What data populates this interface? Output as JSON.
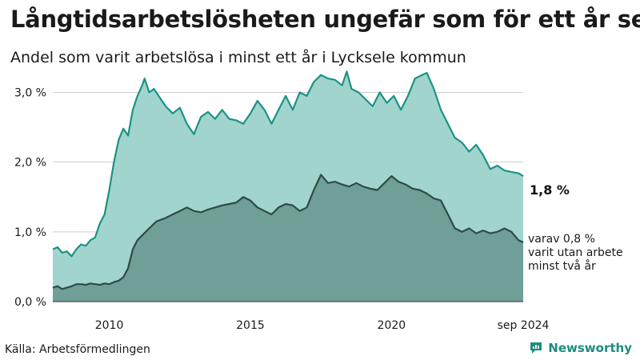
{
  "title": "Långtidsarbetslösheten ungefär som för ett år sen",
  "subtitle": "Andel som varit arbetslösa i minst ett år i Lycksele kommun",
  "source": "Källa: Arbetsförmedlingen",
  "brand": {
    "name": "Newsworthy",
    "icon": "newsworthy-logo-icon"
  },
  "end_label_total": "1,8 %",
  "end_label_note": [
    "varav 0,8 %",
    "varit utan arbete",
    "minst två år"
  ],
  "colors": {
    "total_fill": "#a2d4ce",
    "total_line": "#1a9384",
    "long_fill": "#6f9f97",
    "long_line": "#2e4b44",
    "axis": "#333333",
    "grid": "#cccccc"
  },
  "chart_data": {
    "type": "area",
    "title": "",
    "xlabel": "",
    "ylabel": "",
    "x_start": "2008-01",
    "x_end": "2024-09",
    "x_tick_labels": [
      "2010",
      "2015",
      "2020",
      "sep 2024"
    ],
    "y_tick_labels": [
      "0,0 %",
      "1,0 %",
      "2,0 %",
      "3,0 %"
    ],
    "y_ticks": [
      0,
      1,
      2,
      3
    ],
    "ylim": [
      0,
      3.35
    ],
    "grid": true,
    "series": [
      {
        "name": "",
        "points": [
          [
            "2008-01",
            0.75
          ],
          [
            "2008-03",
            0.78
          ],
          [
            "2008-05",
            0.7
          ],
          [
            "2008-07",
            0.72
          ],
          [
            "2008-09",
            0.65
          ],
          [
            "2008-11",
            0.75
          ],
          [
            "2009-01",
            0.82
          ],
          [
            "2009-03",
            0.8
          ],
          [
            "2009-05",
            0.88
          ],
          [
            "2009-07",
            0.92
          ],
          [
            "2009-09",
            1.12
          ],
          [
            "2009-11",
            1.25
          ],
          [
            "2010-01",
            1.6
          ],
          [
            "2010-03",
            2.0
          ],
          [
            "2010-05",
            2.32
          ],
          [
            "2010-07",
            2.48
          ],
          [
            "2010-09",
            2.38
          ],
          [
            "2010-11",
            2.75
          ],
          [
            "2011-01",
            2.95
          ],
          [
            "2011-03",
            3.1
          ],
          [
            "2011-04",
            3.2
          ],
          [
            "2011-06",
            3.0
          ],
          [
            "2011-08",
            3.05
          ],
          [
            "2011-10",
            2.95
          ],
          [
            "2012-01",
            2.8
          ],
          [
            "2012-04",
            2.7
          ],
          [
            "2012-07",
            2.78
          ],
          [
            "2012-10",
            2.55
          ],
          [
            "2013-01",
            2.4
          ],
          [
            "2013-04",
            2.65
          ],
          [
            "2013-07",
            2.72
          ],
          [
            "2013-10",
            2.62
          ],
          [
            "2014-01",
            2.75
          ],
          [
            "2014-04",
            2.62
          ],
          [
            "2014-07",
            2.6
          ],
          [
            "2014-10",
            2.55
          ],
          [
            "2015-01",
            2.7
          ],
          [
            "2015-04",
            2.88
          ],
          [
            "2015-07",
            2.75
          ],
          [
            "2015-10",
            2.55
          ],
          [
            "2016-01",
            2.75
          ],
          [
            "2016-04",
            2.95
          ],
          [
            "2016-07",
            2.75
          ],
          [
            "2016-10",
            3.0
          ],
          [
            "2017-01",
            2.95
          ],
          [
            "2017-04",
            3.15
          ],
          [
            "2017-07",
            3.25
          ],
          [
            "2017-10",
            3.2
          ],
          [
            "2018-01",
            3.18
          ],
          [
            "2018-04",
            3.1
          ],
          [
            "2018-06",
            3.3
          ],
          [
            "2018-08",
            3.05
          ],
          [
            "2018-11",
            3.0
          ],
          [
            "2019-02",
            2.9
          ],
          [
            "2019-05",
            2.8
          ],
          [
            "2019-08",
            3.0
          ],
          [
            "2019-11",
            2.85
          ],
          [
            "2020-02",
            2.95
          ],
          [
            "2020-05",
            2.75
          ],
          [
            "2020-08",
            2.95
          ],
          [
            "2020-11",
            3.2
          ],
          [
            "2021-02",
            3.25
          ],
          [
            "2021-04",
            3.28
          ],
          [
            "2021-07",
            3.05
          ],
          [
            "2021-10",
            2.75
          ],
          [
            "2022-01",
            2.55
          ],
          [
            "2022-04",
            2.35
          ],
          [
            "2022-07",
            2.28
          ],
          [
            "2022-10",
            2.15
          ],
          [
            "2023-01",
            2.25
          ],
          [
            "2023-04",
            2.1
          ],
          [
            "2023-07",
            1.9
          ],
          [
            "2023-10",
            1.95
          ],
          [
            "2024-01",
            1.88
          ],
          [
            "2024-04",
            1.86
          ],
          [
            "2024-07",
            1.84
          ],
          [
            "2024-09",
            1.8
          ]
        ]
      },
      {
        "name": "",
        "points": [
          [
            "2008-01",
            0.2
          ],
          [
            "2008-03",
            0.22
          ],
          [
            "2008-05",
            0.18
          ],
          [
            "2008-07",
            0.2
          ],
          [
            "2008-09",
            0.22
          ],
          [
            "2008-11",
            0.25
          ],
          [
            "2009-01",
            0.25
          ],
          [
            "2009-03",
            0.24
          ],
          [
            "2009-05",
            0.26
          ],
          [
            "2009-07",
            0.25
          ],
          [
            "2009-09",
            0.24
          ],
          [
            "2009-11",
            0.26
          ],
          [
            "2010-01",
            0.25
          ],
          [
            "2010-03",
            0.28
          ],
          [
            "2010-05",
            0.3
          ],
          [
            "2010-07",
            0.35
          ],
          [
            "2010-09",
            0.48
          ],
          [
            "2010-11",
            0.75
          ],
          [
            "2011-01",
            0.88
          ],
          [
            "2011-03",
            0.95
          ],
          [
            "2011-06",
            1.05
          ],
          [
            "2011-09",
            1.15
          ],
          [
            "2012-01",
            1.2
          ],
          [
            "2012-04",
            1.25
          ],
          [
            "2012-07",
            1.3
          ],
          [
            "2012-10",
            1.35
          ],
          [
            "2013-01",
            1.3
          ],
          [
            "2013-04",
            1.28
          ],
          [
            "2013-07",
            1.32
          ],
          [
            "2013-10",
            1.35
          ],
          [
            "2014-01",
            1.38
          ],
          [
            "2014-04",
            1.4
          ],
          [
            "2014-07",
            1.42
          ],
          [
            "2014-10",
            1.5
          ],
          [
            "2015-01",
            1.45
          ],
          [
            "2015-04",
            1.35
          ],
          [
            "2015-07",
            1.3
          ],
          [
            "2015-10",
            1.25
          ],
          [
            "2016-01",
            1.35
          ],
          [
            "2016-04",
            1.4
          ],
          [
            "2016-07",
            1.38
          ],
          [
            "2016-10",
            1.3
          ],
          [
            "2017-01",
            1.35
          ],
          [
            "2017-04",
            1.6
          ],
          [
            "2017-07",
            1.82
          ],
          [
            "2017-10",
            1.7
          ],
          [
            "2018-01",
            1.72
          ],
          [
            "2018-04",
            1.68
          ],
          [
            "2018-07",
            1.65
          ],
          [
            "2018-10",
            1.7
          ],
          [
            "2019-01",
            1.65
          ],
          [
            "2019-04",
            1.62
          ],
          [
            "2019-07",
            1.6
          ],
          [
            "2019-10",
            1.7
          ],
          [
            "2020-01",
            1.8
          ],
          [
            "2020-04",
            1.72
          ],
          [
            "2020-07",
            1.68
          ],
          [
            "2020-10",
            1.62
          ],
          [
            "2021-01",
            1.6
          ],
          [
            "2021-04",
            1.55
          ],
          [
            "2021-07",
            1.48
          ],
          [
            "2021-10",
            1.45
          ],
          [
            "2022-01",
            1.25
          ],
          [
            "2022-04",
            1.05
          ],
          [
            "2022-07",
            1.0
          ],
          [
            "2022-10",
            1.05
          ],
          [
            "2023-01",
            0.98
          ],
          [
            "2023-04",
            1.02
          ],
          [
            "2023-07",
            0.98
          ],
          [
            "2023-10",
            1.0
          ],
          [
            "2024-01",
            1.05
          ],
          [
            "2024-04",
            1.0
          ],
          [
            "2024-07",
            0.88
          ],
          [
            "2024-09",
            0.85
          ]
        ]
      }
    ]
  }
}
